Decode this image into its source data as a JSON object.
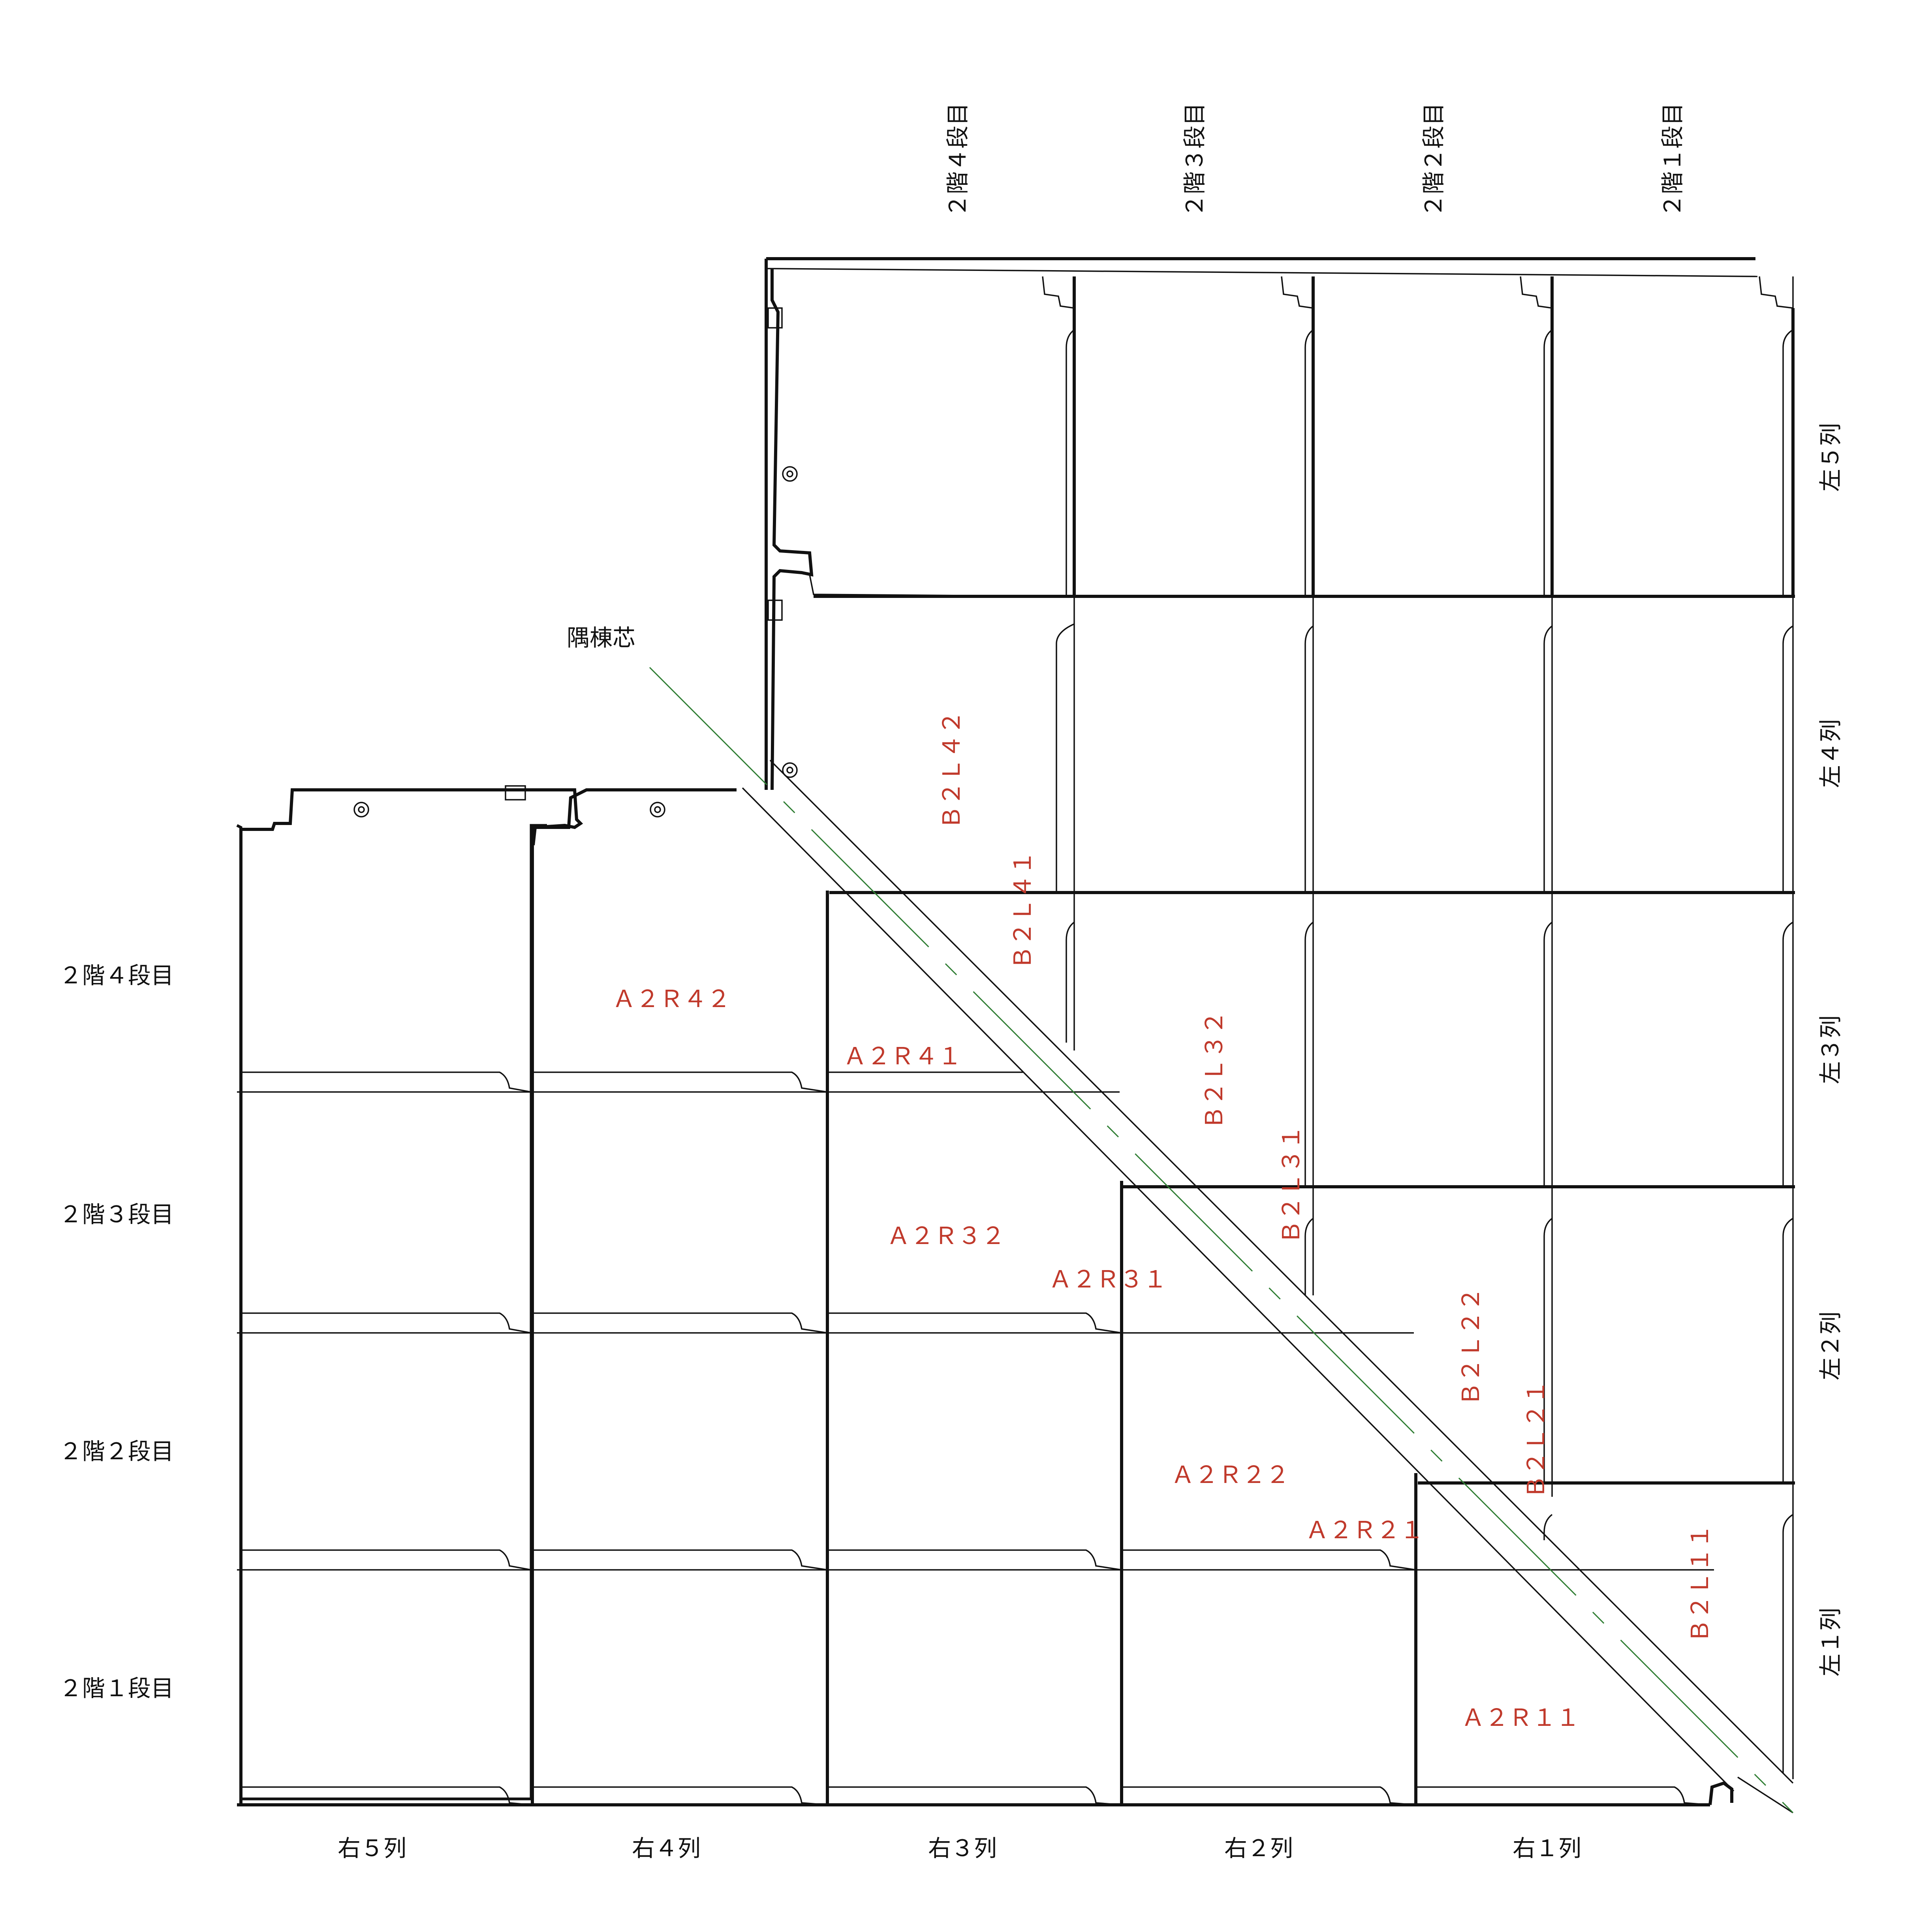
{
  "colors": {
    "label_red": "#c0392b",
    "ridge_green": "#2e7d32",
    "line": "#111111",
    "background": "#ffffff"
  },
  "ridge_label": "隅棟芯",
  "right_block": {
    "column_labels": [
      "右５列",
      "右４列",
      "右３列",
      "右２列",
      "右１列"
    ],
    "row_labels": [
      "２階４段目",
      "２階３段目",
      "２階２段目",
      "２階１段目"
    ],
    "tile_labels": {
      "A2R42": "Ａ２Ｒ４２",
      "A2R41": "Ａ２Ｒ４１",
      "A2R32": "Ａ２Ｒ３２",
      "A2R31": "Ａ２Ｒ３１",
      "A2R22": "Ａ２Ｒ２２",
      "A2R21": "Ａ２Ｒ２１",
      "A2R11": "Ａ２Ｒ１１"
    }
  },
  "left_block": {
    "column_labels": [
      "２階４段目",
      "２階３段目",
      "２階２段目",
      "２階１段目"
    ],
    "row_labels": [
      "左５列",
      "左４列",
      "左３列",
      "左２列",
      "左１列"
    ],
    "tile_labels": {
      "B2L42": "Ｂ２Ｌ４２",
      "B2L41": "Ｂ２Ｌ４１",
      "B2L32": "Ｂ２Ｌ３２",
      "B2L31": "Ｂ２Ｌ３１",
      "B2L22": "Ｂ２Ｌ２２",
      "B2L21": "Ｂ２Ｌ２１",
      "B2L11": "Ｂ２Ｌ１１"
    }
  }
}
